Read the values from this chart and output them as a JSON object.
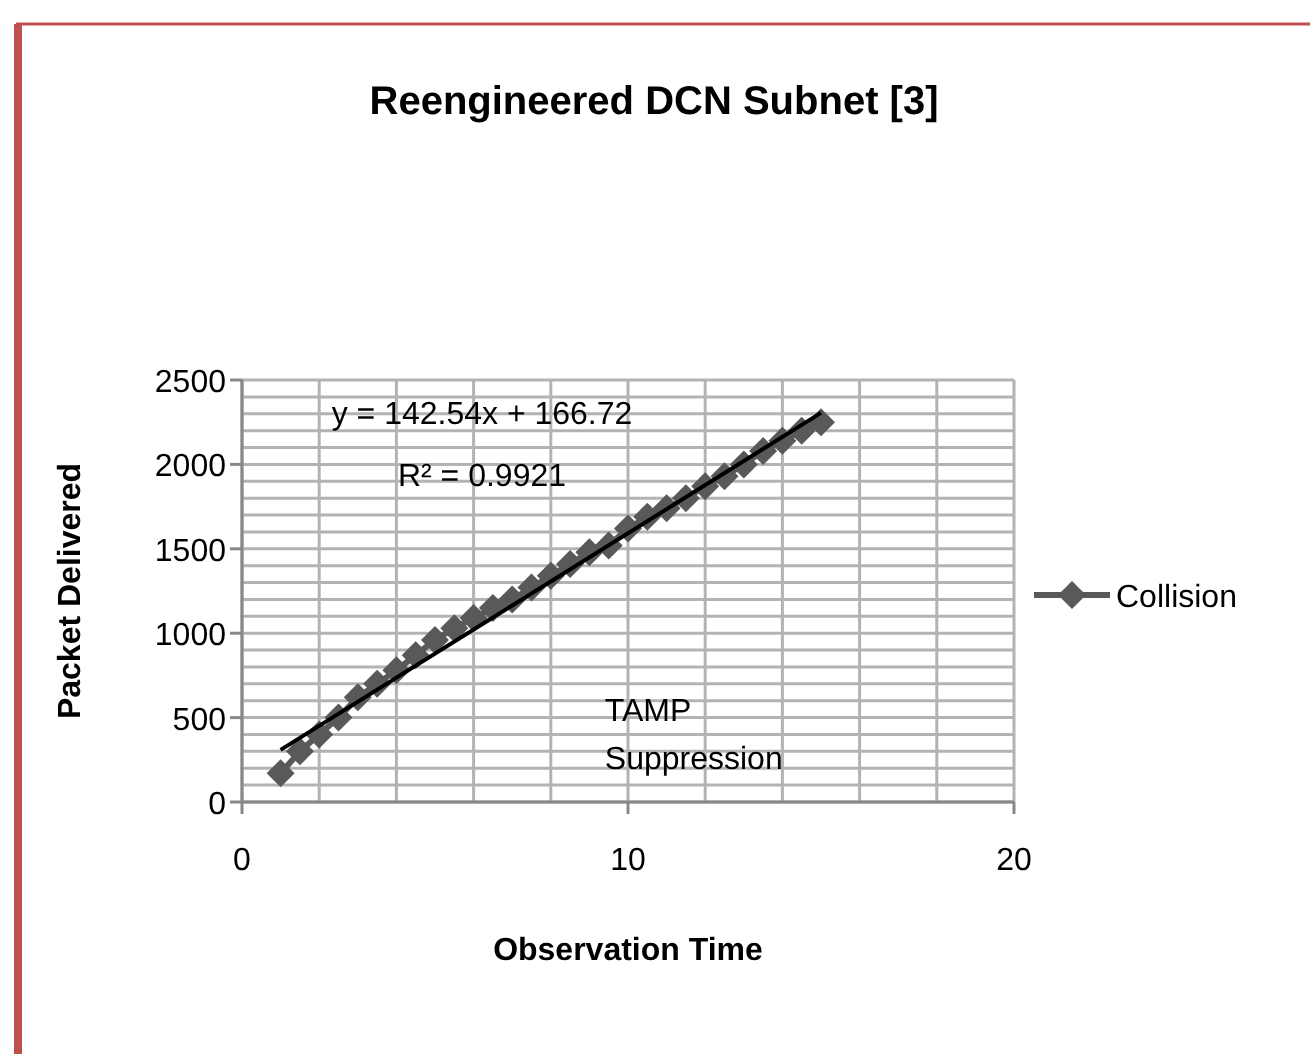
{
  "chart_data": {
    "type": "line",
    "title": "Reengineered DCN Subnet [3]",
    "xlabel": "Observation Time",
    "ylabel": "Packet Delivered",
    "xlim": [
      0,
      20
    ],
    "xticks": [
      0,
      10,
      20
    ],
    "ylim": [
      0,
      2500
    ],
    "yticks": [
      0,
      500,
      1000,
      1500,
      2000,
      2500
    ],
    "grid": true,
    "legend": "right",
    "marker": "diamond",
    "line_style": "solid",
    "series": [
      {
        "name": "Collision",
        "color": "#595959",
        "x": [
          1,
          1.5,
          2,
          2.5,
          3,
          3.5,
          4,
          4.5,
          5,
          5.5,
          6,
          6.5,
          7,
          7.5,
          8,
          8.5,
          9,
          9.5,
          10,
          10.5,
          11,
          11.5,
          12,
          12.5,
          13,
          13.5,
          14,
          14.5,
          15
        ],
        "values": [
          170,
          300,
          400,
          500,
          620,
          700,
          780,
          870,
          960,
          1030,
          1090,
          1150,
          1200,
          1270,
          1340,
          1410,
          1480,
          1520,
          1620,
          1690,
          1740,
          1800,
          1870,
          1930,
          2000,
          2080,
          2140,
          2200,
          2250
        ]
      },
      {
        "type": "line",
        "color": "#000000",
        "marker": "none",
        "x": [
          1,
          15
        ],
        "values": [
          309,
          2305
        ]
      }
    ],
    "annotations": [
      "y = 142.54x + 166.72",
      "R² = 0.9921",
      "TAMP Suppression"
    ]
  }
}
